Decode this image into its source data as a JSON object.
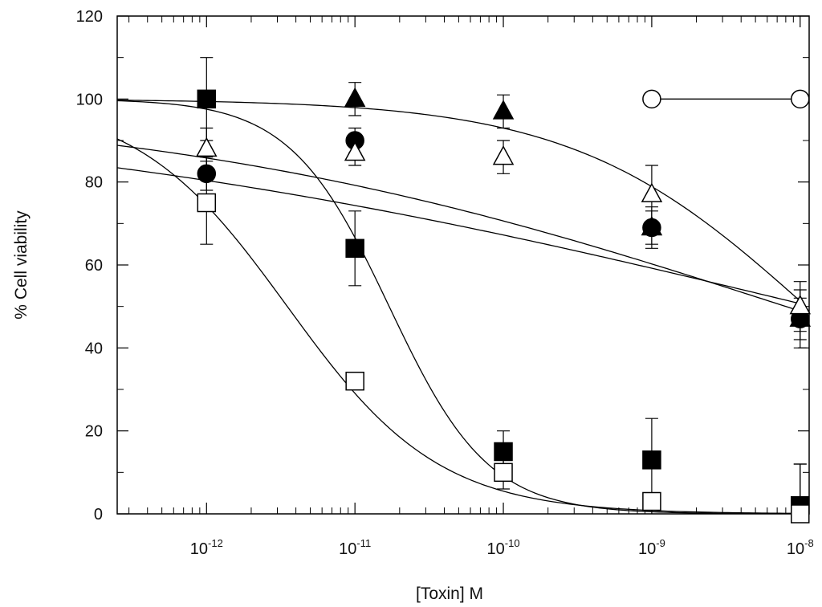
{
  "chart_data": {
    "type": "scatter",
    "title": "",
    "xlabel": "[Toxin] M",
    "ylabel": "% Cell viability",
    "xscale": "log",
    "xlim": [
      2.5e-13,
      1.15e-08
    ],
    "ylim": [
      0,
      120
    ],
    "yticks": [
      0,
      20,
      40,
      60,
      80,
      100,
      120
    ],
    "xticks": [
      {
        "value": 1e-12,
        "base": "10",
        "exp": "-12"
      },
      {
        "value": 1e-11,
        "base": "10",
        "exp": "-11"
      },
      {
        "value": 1e-10,
        "base": "10",
        "exp": "-10"
      },
      {
        "value": 1e-09,
        "base": "10",
        "exp": "-9"
      },
      {
        "value": 1e-08,
        "base": "10",
        "exp": "-8"
      }
    ],
    "grid": false,
    "legend": "none",
    "series": [
      {
        "name": "open-circle",
        "marker": "circle",
        "fill": "open",
        "x": [
          1e-09,
          1e-08
        ],
        "y": [
          100,
          100
        ],
        "err": [
          0,
          0
        ],
        "fit": {
          "type": "line"
        }
      },
      {
        "name": "filled-triangle",
        "marker": "triangle",
        "fill": "filled",
        "x": [
          1e-11,
          1e-10,
          1e-09,
          1e-08
        ],
        "y": [
          100,
          97,
          69,
          47
        ],
        "err": [
          4,
          4,
          5,
          7
        ],
        "fit": {
          "type": "hill",
          "top": 100,
          "bottom": 0,
          "ec50": 1.1e-08,
          "slope": 0.55
        }
      },
      {
        "name": "filled-circle",
        "marker": "circle",
        "fill": "filled",
        "x": [
          1e-12,
          1e-11,
          1e-09,
          1e-08
        ],
        "y": [
          82,
          90,
          69,
          47
        ],
        "err": [
          4,
          3,
          4,
          5
        ],
        "fit": {
          "type": "hill",
          "top": 100,
          "bottom": 0,
          "ec50": 8e-09,
          "slope": 0.2
        }
      },
      {
        "name": "open-triangle",
        "marker": "triangle",
        "fill": "open",
        "x": [
          1e-12,
          1e-11,
          1e-10,
          1e-09,
          1e-08
        ],
        "y": [
          88,
          87,
          86,
          77,
          50
        ],
        "err": [
          5,
          3,
          4,
          7,
          6
        ],
        "fit": {
          "type": "hill",
          "top": 100,
          "bottom": 0,
          "ec50": 1.2e-08,
          "slope": 0.15
        }
      },
      {
        "name": "filled-square",
        "marker": "square",
        "fill": "filled",
        "x": [
          1e-12,
          1e-11,
          1e-10,
          1e-09,
          1e-08
        ],
        "y": [
          100,
          64,
          15,
          13,
          2
        ],
        "err": [
          10,
          9,
          5,
          10,
          10
        ],
        "fit": {
          "type": "hill",
          "top": 100,
          "bottom": 0,
          "ec50": 1.7e-11,
          "slope": 1.3
        }
      },
      {
        "name": "open-square",
        "marker": "square",
        "fill": "open",
        "x": [
          1e-12,
          1e-11,
          1e-10,
          1e-09,
          1e-08
        ],
        "y": [
          75,
          32,
          10,
          3,
          0
        ],
        "err": [
          10,
          0,
          4,
          2,
          12
        ],
        "fit": {
          "type": "hill",
          "top": 100,
          "bottom": 0,
          "ec50": 3.5e-12,
          "slope": 0.85
        }
      }
    ]
  }
}
